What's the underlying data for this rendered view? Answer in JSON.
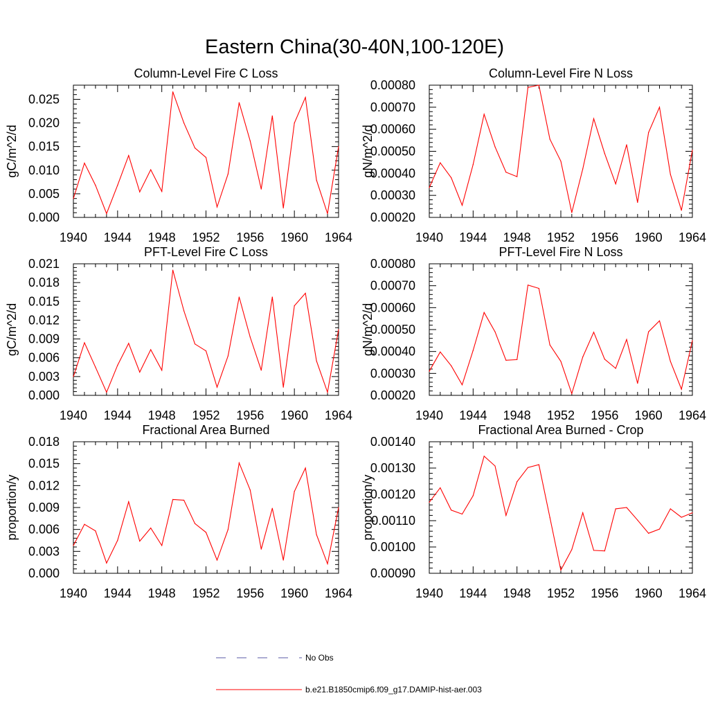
{
  "figure": {
    "title": "Eastern China(30-40N,100-120E)",
    "legend": [
      {
        "label": "No Obs",
        "color": "#5a5aa6",
        "style": "dashed"
      },
      {
        "label": "b.e21.B1850cmip6.f09_g17.DAMIP-hist-aer.003",
        "color": "#ff0000",
        "style": "solid"
      }
    ]
  },
  "chart_data": [
    {
      "type": "line",
      "title": "Column-Level Fire C Loss",
      "ylabel": "gC/m^2/d",
      "xlim": [
        1940,
        1964
      ],
      "ylim": [
        0.0,
        0.028
      ],
      "xticks": [
        "1940",
        "1944",
        "1948",
        "1952",
        "1956",
        "1960",
        "1964"
      ],
      "yticks": [
        "0.000",
        "0.005",
        "0.010",
        "0.015",
        "0.020",
        "0.025"
      ],
      "series": [
        {
          "color": "#ff0000",
          "x": [
            1940,
            1941,
            1942,
            1943,
            1944,
            1945,
            1946,
            1947,
            1948,
            1949,
            1950,
            1951,
            1952,
            1953,
            1954,
            1955,
            1956,
            1957,
            1958,
            1959,
            1960,
            1961,
            1962,
            1963,
            1964
          ],
          "values": [
            0.004,
            0.0115,
            0.0068,
            0.0008,
            0.0068,
            0.0131,
            0.0054,
            0.0101,
            0.0055,
            0.0266,
            0.02,
            0.0147,
            0.0127,
            0.0022,
            0.0092,
            0.0243,
            0.0162,
            0.006,
            0.0215,
            0.002,
            0.02,
            0.0254,
            0.0079,
            0.0008,
            0.015
          ]
        }
      ]
    },
    {
      "type": "line",
      "title": "Column-Level Fire N Loss",
      "ylabel": "gN/m^2/d",
      "xlim": [
        1940,
        1964
      ],
      "ylim": [
        0.0002,
        0.0008
      ],
      "xticks": [
        "1940",
        "1944",
        "1948",
        "1952",
        "1956",
        "1960",
        "1964"
      ],
      "yticks": [
        "0.00020",
        "0.00030",
        "0.00040",
        "0.00050",
        "0.00060",
        "0.00070",
        "0.00080"
      ],
      "series": [
        {
          "color": "#ff0000",
          "x": [
            1940,
            1941,
            1942,
            1943,
            1944,
            1945,
            1946,
            1947,
            1948,
            1949,
            1950,
            1951,
            1952,
            1953,
            1954,
            1955,
            1956,
            1957,
            1958,
            1959,
            1960,
            1961,
            1962,
            1963,
            1964
          ],
          "values": [
            0.000335,
            0.000448,
            0.00038,
            0.000255,
            0.00044,
            0.000668,
            0.00052,
            0.000405,
            0.000385,
            0.00079,
            0.0008,
            0.000555,
            0.000455,
            0.000222,
            0.00042,
            0.000648,
            0.00049,
            0.000352,
            0.00053,
            0.000268,
            0.000585,
            0.0007,
            0.000395,
            0.000232,
            0.000505
          ]
        }
      ]
    },
    {
      "type": "line",
      "title": "PFT-Level Fire C Loss",
      "ylabel": "gC/m^2/d",
      "xlim": [
        1940,
        1964
      ],
      "ylim": [
        0.0,
        0.021
      ],
      "xticks": [
        "1940",
        "1944",
        "1948",
        "1952",
        "1956",
        "1960",
        "1964"
      ],
      "yticks": [
        "0.000",
        "0.003",
        "0.006",
        "0.009",
        "0.012",
        "0.015",
        "0.018",
        "0.021"
      ],
      "series": [
        {
          "color": "#ff0000",
          "x": [
            1940,
            1941,
            1942,
            1943,
            1944,
            1945,
            1946,
            1947,
            1948,
            1949,
            1950,
            1951,
            1952,
            1953,
            1954,
            1955,
            1956,
            1957,
            1958,
            1959,
            1960,
            1961,
            1962,
            1963,
            1964
          ],
          "values": [
            0.003,
            0.0084,
            0.0045,
            0.0005,
            0.0048,
            0.0083,
            0.0037,
            0.0073,
            0.004,
            0.02,
            0.0135,
            0.0082,
            0.0071,
            0.0013,
            0.0063,
            0.0157,
            0.0093,
            0.004,
            0.0157,
            0.0013,
            0.0143,
            0.0163,
            0.0055,
            0.0005,
            0.0105
          ]
        }
      ]
    },
    {
      "type": "line",
      "title": "PFT-Level Fire N Loss",
      "ylabel": "gN/m^2/d",
      "xlim": [
        1940,
        1964
      ],
      "ylim": [
        0.0002,
        0.0008
      ],
      "xticks": [
        "1940",
        "1944",
        "1948",
        "1952",
        "1956",
        "1960",
        "1964"
      ],
      "yticks": [
        "0.00020",
        "0.00030",
        "0.00040",
        "0.00050",
        "0.00060",
        "0.00070",
        "0.00080"
      ],
      "series": [
        {
          "color": "#ff0000",
          "x": [
            1940,
            1941,
            1942,
            1943,
            1944,
            1945,
            1946,
            1947,
            1948,
            1949,
            1950,
            1951,
            1952,
            1953,
            1954,
            1955,
            1956,
            1957,
            1958,
            1959,
            1960,
            1961,
            1962,
            1963,
            1964
          ],
          "values": [
            0.00031,
            0.000398,
            0.000335,
            0.000248,
            0.000405,
            0.000578,
            0.00049,
            0.00036,
            0.000363,
            0.000703,
            0.000688,
            0.00043,
            0.000355,
            0.000208,
            0.000375,
            0.000488,
            0.000365,
            0.000323,
            0.000455,
            0.000255,
            0.00049,
            0.00054,
            0.000355,
            0.000228,
            0.00045
          ]
        }
      ]
    },
    {
      "type": "line",
      "title": "Fractional Area Burned",
      "ylabel": "proportion/y",
      "xlim": [
        1940,
        1964
      ],
      "ylim": [
        0.0,
        0.018
      ],
      "xticks": [
        "1940",
        "1944",
        "1948",
        "1952",
        "1956",
        "1960",
        "1964"
      ],
      "yticks": [
        "0.000",
        "0.003",
        "0.006",
        "0.009",
        "0.012",
        "0.015",
        "0.018"
      ],
      "series": [
        {
          "color": "#ff0000",
          "x": [
            1940,
            1941,
            1942,
            1943,
            1944,
            1945,
            1946,
            1947,
            1948,
            1949,
            1950,
            1951,
            1952,
            1953,
            1954,
            1955,
            1956,
            1957,
            1958,
            1959,
            1960,
            1961,
            1962,
            1963,
            1964
          ],
          "values": [
            0.0038,
            0.0067,
            0.0058,
            0.0014,
            0.0045,
            0.0098,
            0.0044,
            0.0062,
            0.0038,
            0.0101,
            0.01,
            0.0068,
            0.0056,
            0.0018,
            0.006,
            0.0151,
            0.0114,
            0.0033,
            0.0089,
            0.0018,
            0.0112,
            0.0144,
            0.0053,
            0.0013,
            0.009
          ]
        }
      ]
    },
    {
      "type": "line",
      "title": "Fractional Area Burned - Crop",
      "ylabel": "proportion/y",
      "xlim": [
        1940,
        1964
      ],
      "ylim": [
        0.0009,
        0.0014
      ],
      "xticks": [
        "1940",
        "1944",
        "1948",
        "1952",
        "1956",
        "1960",
        "1964"
      ],
      "yticks": [
        "0.00090",
        "0.00100",
        "0.00110",
        "0.00120",
        "0.00130",
        "0.00140"
      ],
      "series": [
        {
          "color": "#ff0000",
          "x": [
            1940,
            1941,
            1942,
            1943,
            1944,
            1945,
            1946,
            1947,
            1948,
            1949,
            1950,
            1951,
            1952,
            1953,
            1954,
            1955,
            1956,
            1957,
            1958,
            1959,
            1960,
            1961,
            1962,
            1963,
            1964
          ],
          "values": [
            0.00117,
            0.001225,
            0.00114,
            0.001125,
            0.001195,
            0.001345,
            0.001308,
            0.00112,
            0.001248,
            0.001302,
            0.001313,
            0.001112,
            0.000912,
            0.00099,
            0.00113,
            0.000987,
            0.000985,
            0.001145,
            0.00115,
            0.001102,
            0.001052,
            0.001068,
            0.001145,
            0.001113,
            0.00113
          ]
        }
      ]
    }
  ]
}
